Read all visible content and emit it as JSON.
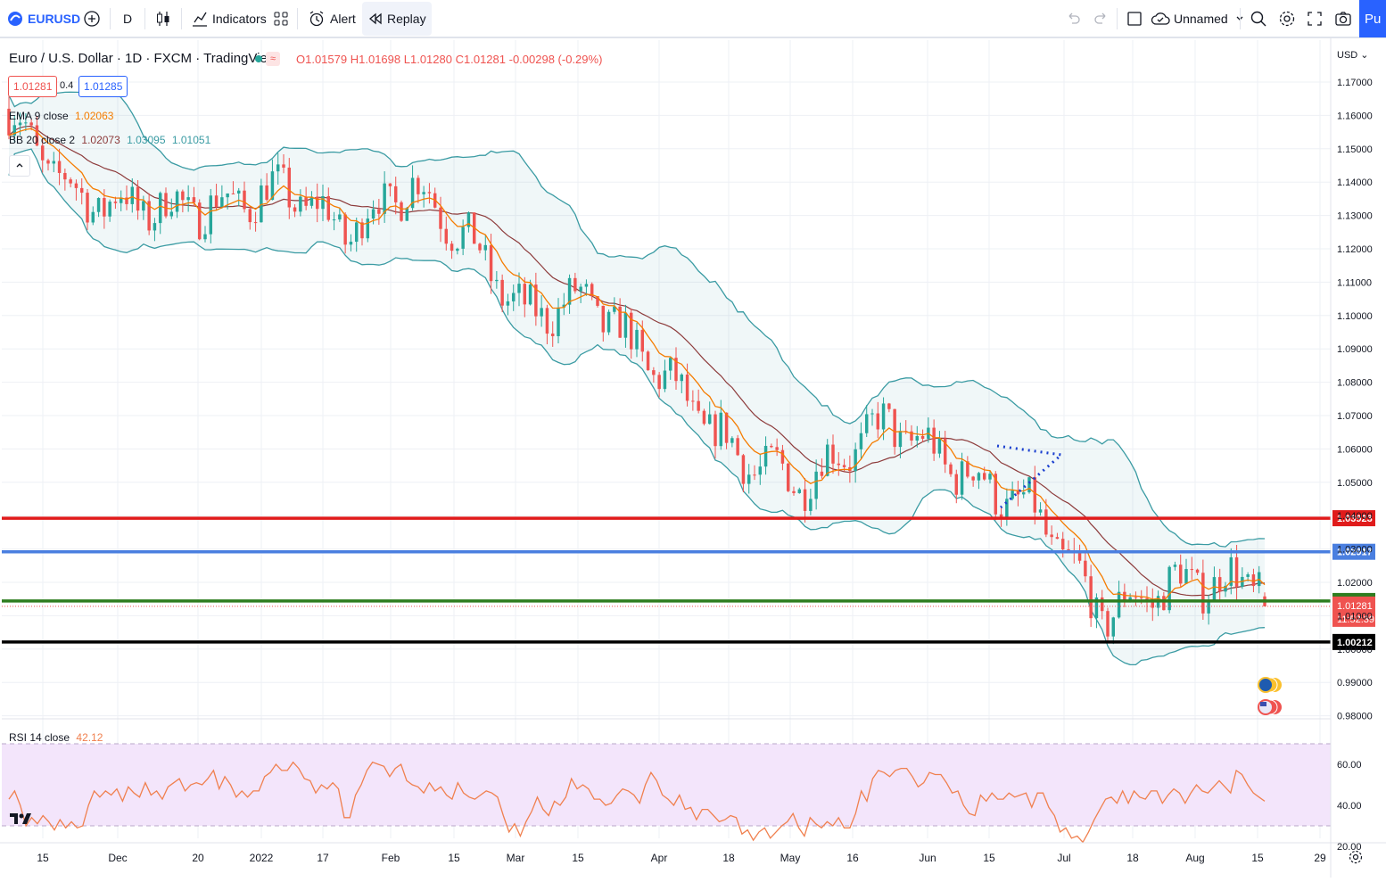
{
  "toolbar": {
    "symbol": "EURUSD",
    "interval": "D",
    "indicators_label": "Indicators",
    "alert_label": "Alert",
    "replay_label": "Replay",
    "layout_name": "Unnamed",
    "publish_label": "Pu"
  },
  "legend": {
    "title": "Euro / U.S. Dollar · 1D · FXCM · TradingView",
    "ohlc": {
      "o": "O1.01579",
      "h": "H1.01698",
      "l": "L1.01280",
      "c": "C1.01281",
      "chg": "-0.00298 (-0.29%)"
    },
    "bid": "1.01281",
    "spread": "0.4",
    "ask": "1.01285",
    "ema_label": "EMA 9 close",
    "ema_value": "1.02063",
    "bb_label": "BB 20 close 2",
    "bb_basis": "1.02073",
    "bb_upper": "1.03095",
    "bb_lower": "1.01051",
    "rsi_label": "RSI 14 close",
    "rsi_value": "42.12"
  },
  "colors": {
    "up": "#26a69a",
    "down": "#ef5350",
    "ema": "#f57c00",
    "bb_basis": "#8d3b3b",
    "bb_band": "#3a9ba3",
    "rsi_line": "#f0804f",
    "level_red": "#e01b1b",
    "level_blue": "#4a7fe0",
    "level_green": "#2e7d1f",
    "level_black": "#000000"
  },
  "price_axis": {
    "currency": "USD",
    "ticks": [
      "1.17000",
      "1.16000",
      "1.15000",
      "1.14000",
      "1.13000",
      "1.12000",
      "1.11000",
      "1.10000",
      "1.09000",
      "1.08000",
      "1.07000",
      "1.06000",
      "1.05000",
      "1.04000",
      "1.03000",
      "1.02000",
      "1.01000",
      "1.00000",
      "0.99000",
      "0.98000"
    ]
  },
  "levels": [
    {
      "name": "level-red",
      "price": 1.03923,
      "label": "1.03923",
      "color": "#e01b1b"
    },
    {
      "name": "level-blue",
      "price": 1.02917,
      "label": "1.02917",
      "color": "#4a7fe0"
    },
    {
      "name": "level-green",
      "price": 1.01441,
      "label": "1.01441",
      "color": "#2e7d1f"
    },
    {
      "name": "level-black",
      "price": 1.00212,
      "label": "1.00212",
      "color": "#000000"
    }
  ],
  "current_price": {
    "label": "1.01281",
    "countdown": "11:52:39"
  },
  "rsi_axis": {
    "ticks": [
      "60.00",
      "40.00",
      "20.00"
    ]
  },
  "time_axis": [
    "15",
    "Dec",
    "20",
    "2022",
    "17",
    "Feb",
    "15",
    "Mar",
    "15",
    "Apr",
    "18",
    "May",
    "16",
    "Jun",
    "15",
    "Jul",
    "18",
    "Aug",
    "15",
    "29"
  ],
  "chart_data": {
    "type": "line",
    "title": "Euro / U.S. Dollar · 1D · FXCM · TradingView",
    "series": [
      {
        "name": "EMA 9 close",
        "x": [
          "15",
          "Dec",
          "20",
          "2022",
          "17",
          "Feb",
          "15",
          "Mar",
          "15",
          "Apr",
          "18",
          "May",
          "16",
          "Jun",
          "15",
          "Jul",
          "18",
          "Aug",
          "15"
        ],
        "values": [
          1.16,
          1.135,
          1.132,
          1.133,
          1.138,
          1.125,
          1.14,
          1.125,
          1.1,
          1.105,
          1.082,
          1.058,
          1.05,
          1.068,
          1.053,
          1.04,
          1.01,
          1.02,
          1.0206
        ]
      },
      {
        "name": "BB 20 close 2",
        "x": [
          "15",
          "Dec",
          "20",
          "2022",
          "17",
          "Feb",
          "15",
          "Mar",
          "15",
          "Apr",
          "18",
          "May",
          "16",
          "Jun",
          "15",
          "Jul",
          "18",
          "Aug",
          "15"
        ],
        "values": [
          1.158,
          1.14,
          1.132,
          1.132,
          1.135,
          1.128,
          1.134,
          1.128,
          1.106,
          1.1,
          1.09,
          1.068,
          1.052,
          1.06,
          1.063,
          1.048,
          1.022,
          1.018,
          1.0207
        ]
      }
    ],
    "ylim": [
      0.975,
      1.176
    ],
    "rsi": {
      "name": "RSI 14 close",
      "ylim": [
        20,
        70
      ],
      "values": [
        43,
        47,
        40,
        30,
        34,
        31,
        35,
        32,
        28,
        33,
        29,
        32,
        29,
        30,
        40,
        47,
        44,
        47,
        45,
        48,
        42,
        49,
        46,
        44,
        51,
        45,
        47,
        43,
        49,
        51,
        53,
        47,
        50,
        51,
        50,
        53,
        57,
        48,
        54,
        50,
        44,
        47,
        44,
        47,
        47,
        54,
        56,
        60,
        57,
        57,
        61,
        58,
        53,
        52,
        46,
        50,
        48,
        51,
        48,
        34,
        34,
        45,
        50,
        57,
        61,
        60,
        59,
        54,
        58,
        60,
        52,
        50,
        49,
        46,
        51,
        47,
        49,
        45,
        43,
        51,
        46,
        44,
        43,
        45,
        47,
        46,
        44,
        35,
        27,
        31,
        25,
        32,
        37,
        44,
        38,
        35,
        42,
        40,
        44,
        53,
        48,
        50,
        48,
        43,
        43,
        40,
        41,
        45,
        48,
        47,
        45,
        41,
        50,
        56,
        52,
        45,
        43,
        40,
        45,
        38,
        39,
        33,
        38,
        38,
        35,
        32,
        33,
        35,
        34,
        26,
        28,
        23,
        27,
        29,
        24,
        27,
        30,
        32,
        36,
        29,
        25,
        34,
        31,
        29,
        32,
        30,
        34,
        29,
        29,
        36,
        47,
        42,
        53,
        57,
        56,
        54,
        57,
        58,
        58,
        54,
        49,
        51,
        56,
        55,
        55,
        51,
        46,
        47,
        40,
        36,
        35,
        45,
        42,
        46,
        43,
        43,
        46,
        44,
        45,
        46,
        39,
        46,
        46,
        39,
        35,
        27,
        29,
        24,
        25,
        22,
        27,
        33,
        38,
        43,
        44,
        41,
        47,
        41,
        47,
        44,
        43,
        47,
        47,
        41,
        45,
        48,
        46,
        41,
        46,
        50,
        47,
        46,
        49,
        52,
        49,
        46,
        57,
        55,
        50,
        46,
        44,
        42
      ]
    }
  }
}
